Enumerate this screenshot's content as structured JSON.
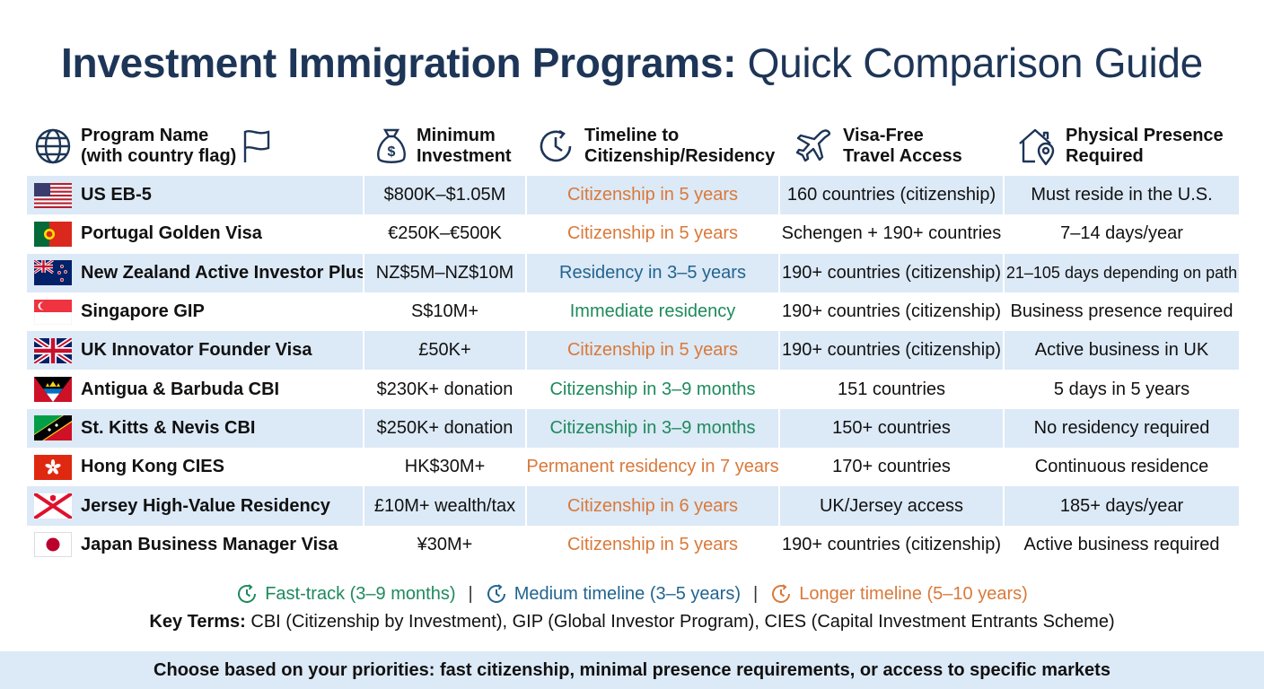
{
  "title": {
    "bold": "Investment Immigration Programs:",
    "light": "Quick Comparison Guide"
  },
  "headers": {
    "program": [
      "Program Name",
      "(with country flag)"
    ],
    "investment": [
      "Minimum",
      "Investment"
    ],
    "timeline": [
      "Timeline to",
      "Citizenship/Residency"
    ],
    "travel": [
      "Visa-Free",
      "Travel Access"
    ],
    "presence": [
      "Physical Presence",
      "Required"
    ]
  },
  "icons": {
    "program": "globe-icon",
    "program_flag": "flag-icon",
    "investment": "money-bag-icon",
    "timeline": "clock-icon",
    "travel": "airplane-icon",
    "presence": "house-location-icon"
  },
  "colors": {
    "fast": "#1e8a5c",
    "medium": "#22648f",
    "longer": "#d9793a",
    "title": "#1d3557",
    "row_shade": "#dce9f6"
  },
  "rows": [
    {
      "flag": "us",
      "name": "US EB-5",
      "investment": "$800K–$1.05M",
      "timeline": "Citizenship in 5 years",
      "category": "longer",
      "travel": "160 countries (citizenship)",
      "presence": "Must reside in the U.S."
    },
    {
      "flag": "pt",
      "name": "Portugal Golden Visa",
      "investment": "€250K–€500K",
      "timeline": "Citizenship in 5 years",
      "category": "longer",
      "travel": "Schengen + 190+ countries",
      "presence": "7–14 days/year"
    },
    {
      "flag": "nz",
      "name": "New Zealand Active Investor Plus",
      "investment": "NZ$5M–NZ$10M",
      "timeline": "Residency in 3–5 years",
      "category": "medium",
      "travel": "190+ countries (citizenship)",
      "presence": "21–105 days depending on path"
    },
    {
      "flag": "sg",
      "name": "Singapore GIP",
      "investment": "S$10M+",
      "timeline": "Immediate residency",
      "category": "fast",
      "travel": "190+ countries (citizenship)",
      "presence": "Business presence required"
    },
    {
      "flag": "uk",
      "name": "UK Innovator Founder Visa",
      "investment": "£50K+",
      "timeline": "Citizenship in 5 years",
      "category": "longer",
      "travel": "190+ countries (citizenship)",
      "presence": "Active business in UK"
    },
    {
      "flag": "ag",
      "name": "Antigua & Barbuda CBI",
      "investment": "$230K+ donation",
      "timeline": "Citizenship in 3–9 months",
      "category": "fast",
      "travel": "151 countries",
      "presence": "5 days in 5 years"
    },
    {
      "flag": "kn",
      "name": "St. Kitts & Nevis CBI",
      "investment": "$250K+ donation",
      "timeline": "Citizenship in 3–9 months",
      "category": "fast",
      "travel": "150+ countries",
      "presence": "No residency required"
    },
    {
      "flag": "hk",
      "name": "Hong Kong CIES",
      "investment": "HK$30M+",
      "timeline": "Permanent residency in 7 years",
      "category": "longer",
      "travel": "170+ countries",
      "presence": "Continuous residence"
    },
    {
      "flag": "je",
      "name": "Jersey High-Value Residency",
      "investment": "£10M+ wealth/tax",
      "timeline": "Citizenship in 6 years",
      "category": "longer",
      "travel": "UK/Jersey access",
      "presence": "185+ days/year"
    },
    {
      "flag": "jp",
      "name": "Japan Business Manager Visa",
      "investment": "¥30M+",
      "timeline": "Citizenship in 5 years",
      "category": "longer",
      "travel": "190+ countries (citizenship)",
      "presence": "Active business required"
    }
  ],
  "legend": {
    "fast": "Fast-track (3–9 months)",
    "medium": "Medium timeline (3–5 years)",
    "longer": "Longer timeline (5–10 years)",
    "separator": "|"
  },
  "key_terms": {
    "label": "Key Terms:",
    "text": "CBI (Citizenship by Investment), GIP (Global Investor Program), CIES (Capital Investment Entrants Scheme)"
  },
  "footer": "Choose based on your priorities: fast citizenship, minimal presence requirements, or access to specific markets"
}
